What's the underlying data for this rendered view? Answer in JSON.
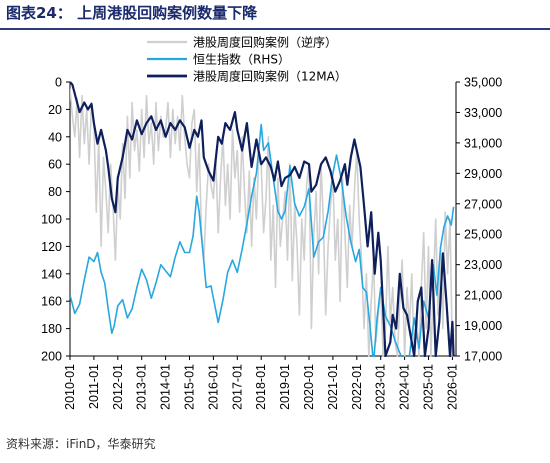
{
  "title": "图表24：  上周港股回购案例数量下降",
  "source": "资料来源：iFinD，华泰研究",
  "colors": {
    "weekly": "#cfcfcf",
    "hsi": "#27a7e0",
    "ma12": "#0e1f5c",
    "title": "#1a2a6c"
  },
  "chart_data": {
    "type": "line",
    "x_ticks": [
      "2010-01",
      "2011-01",
      "2012-01",
      "2013-01",
      "2014-01",
      "2015-01",
      "2016-01",
      "2017-01",
      "2018-01",
      "2019-01",
      "2020-01",
      "2021-01",
      "2022-01",
      "2023-01",
      "2024-01",
      "2025-01",
      "2026-01"
    ],
    "y_left": {
      "ticks": [
        0,
        20,
        40,
        60,
        80,
        100,
        120,
        140,
        160,
        180,
        200
      ],
      "ylim": [
        0,
        200
      ],
      "reversed": true,
      "label": ""
    },
    "y_right": {
      "ticks": [
        "35,000",
        "33,000",
        "31,000",
        "29,000",
        "27,000",
        "25,000",
        "23,000",
        "21,000",
        "19,000",
        "17,000"
      ],
      "ylim": [
        17000,
        35000
      ]
    },
    "legend": [
      {
        "name": "港股周度回购案例（逆序）",
        "key": "weekly"
      },
      {
        "name": "恒生指数（RHS）",
        "key": "hsi"
      },
      {
        "name": "港股周度回购案例（12MA）",
        "key": "ma12"
      }
    ],
    "series": [
      {
        "name": "港股周度回购案例（12MA）",
        "axis": "left",
        "x": [
          2010.0,
          2010.1,
          2010.25,
          2010.4,
          2010.6,
          2010.75,
          2010.9,
          2011.0,
          2011.15,
          2011.3,
          2011.5,
          2011.6,
          2011.75,
          2011.9,
          2012.0,
          2012.2,
          2012.4,
          2012.6,
          2012.8,
          2013.0,
          2013.2,
          2013.4,
          2013.6,
          2013.8,
          2014.0,
          2014.2,
          2014.4,
          2014.6,
          2014.8,
          2015.0,
          2015.2,
          2015.35,
          2015.5,
          2015.6,
          2015.8,
          2016.0,
          2016.2,
          2016.35,
          2016.5,
          2016.7,
          2016.9,
          2017.0,
          2017.2,
          2017.4,
          2017.6,
          2017.8,
          2018.0,
          2018.2,
          2018.4,
          2018.55,
          2018.7,
          2018.85,
          2019.0,
          2019.2,
          2019.4,
          2019.6,
          2019.8,
          2020.0,
          2020.1,
          2020.3,
          2020.5,
          2020.7,
          2020.9,
          2021.1,
          2021.3,
          2021.5,
          2021.6,
          2021.75,
          2021.9,
          2022.0,
          2022.15,
          2022.3,
          2022.45,
          2022.6,
          2022.75,
          2022.9,
          2023.0,
          2023.2,
          2023.4,
          2023.5,
          2023.65,
          2023.8,
          2023.95,
          2024.1,
          2024.25,
          2024.4,
          2024.55,
          2024.7,
          2024.85,
          2025.0,
          2025.15,
          2025.3,
          2025.45,
          2025.6,
          2025.75,
          2025.9,
          2026.0,
          2026.05
        ],
        "values": [
          0,
          2,
          12,
          22,
          15,
          20,
          16,
          30,
          45,
          35,
          50,
          62,
          85,
          95,
          70,
          55,
          35,
          42,
          28,
          38,
          30,
          25,
          35,
          28,
          40,
          30,
          35,
          28,
          33,
          48,
          35,
          40,
          28,
          55,
          65,
          72,
          40,
          45,
          30,
          35,
          22,
          35,
          50,
          30,
          62,
          42,
          60,
          55,
          62,
          72,
          58,
          76,
          70,
          68,
          62,
          70,
          58,
          60,
          80,
          75,
          60,
          55,
          65,
          80,
          72,
          60,
          75,
          55,
          42,
          50,
          62,
          90,
          120,
          95,
          140,
          110,
          130,
          200,
          190,
          170,
          180,
          140,
          165,
          170,
          185,
          200,
          160,
          150,
          200,
          180,
          130,
          200,
          175,
          125,
          160,
          200,
          175,
          200
        ]
      },
      {
        "name": "恒生指数（RHS）",
        "axis": "right",
        "x": [
          2010.0,
          2010.2,
          2010.4,
          2010.6,
          2010.8,
          2011.0,
          2011.15,
          2011.3,
          2011.45,
          2011.6,
          2011.75,
          2011.85,
          2012.0,
          2012.2,
          2012.4,
          2012.6,
          2012.8,
          2013.0,
          2013.2,
          2013.4,
          2013.6,
          2013.8,
          2014.0,
          2014.2,
          2014.4,
          2014.6,
          2014.8,
          2015.0,
          2015.15,
          2015.3,
          2015.4,
          2015.55,
          2015.7,
          2015.9,
          2016.1,
          2016.2,
          2016.4,
          2016.6,
          2016.8,
          2017.0,
          2017.2,
          2017.4,
          2017.6,
          2017.8,
          2018.0,
          2018.1,
          2018.3,
          2018.5,
          2018.7,
          2018.85,
          2019.0,
          2019.2,
          2019.4,
          2019.6,
          2019.8,
          2020.0,
          2020.2,
          2020.4,
          2020.6,
          2020.8,
          2021.0,
          2021.15,
          2021.35,
          2021.55,
          2021.75,
          2021.95,
          2022.1,
          2022.25,
          2022.4,
          2022.55,
          2022.7,
          2022.85,
          2023.0,
          2023.2,
          2023.4,
          2023.6,
          2023.8,
          2024.0,
          2024.2,
          2024.4,
          2024.6,
          2024.8,
          2025.0,
          2025.2,
          2025.35,
          2025.5,
          2025.65,
          2025.8,
          2025.95,
          2026.05
        ],
        "values": [
          21000,
          19800,
          20400,
          22000,
          23500,
          23200,
          23800,
          22500,
          21800,
          20100,
          18500,
          19000,
          20300,
          20700,
          19500,
          20100,
          21500,
          22700,
          22000,
          20800,
          21800,
          23000,
          22600,
          22200,
          23500,
          24500,
          23800,
          23800,
          24900,
          27500,
          26500,
          24000,
          21500,
          21600,
          20000,
          19200,
          20700,
          22500,
          23300,
          22500,
          24000,
          25700,
          27500,
          29000,
          32200,
          30500,
          31000,
          28700,
          26500,
          26000,
          26500,
          29500,
          27000,
          26200,
          26800,
          28000,
          23500,
          24500,
          24800,
          26500,
          29000,
          30200,
          28600,
          26200,
          24500,
          23200,
          24000,
          21500,
          21200,
          19000,
          16500,
          19500,
          21500,
          19600,
          19000,
          18000,
          17200,
          16500,
          17000,
          19500,
          17500,
          20600,
          19500,
          23000,
          21000,
          24100,
          25500,
          26200,
          25600,
          26800
        ]
      },
      {
        "name": "港股周度回购案例（逆序）",
        "axis": "left",
        "x": [
          2010.0,
          2010.1,
          2010.2,
          2010.3,
          2010.4,
          2010.5,
          2010.6,
          2010.7,
          2010.8,
          2010.9,
          2011.0,
          2011.1,
          2011.2,
          2011.3,
          2011.4,
          2011.5,
          2011.6,
          2011.7,
          2011.8,
          2011.9,
          2012.0,
          2012.1,
          2012.2,
          2012.3,
          2012.4,
          2012.5,
          2012.6,
          2012.7,
          2012.8,
          2012.9,
          2013.0,
          2013.1,
          2013.2,
          2013.3,
          2013.4,
          2013.5,
          2013.6,
          2013.7,
          2013.8,
          2013.9,
          2014.0,
          2014.1,
          2014.2,
          2014.3,
          2014.4,
          2014.5,
          2014.6,
          2014.7,
          2014.8,
          2014.9,
          2015.0,
          2015.1,
          2015.2,
          2015.3,
          2015.4,
          2015.5,
          2015.6,
          2015.7,
          2015.8,
          2015.9,
          2016.0,
          2016.1,
          2016.2,
          2016.3,
          2016.4,
          2016.5,
          2016.6,
          2016.7,
          2016.8,
          2016.9,
          2017.0,
          2017.1,
          2017.2,
          2017.3,
          2017.4,
          2017.5,
          2017.6,
          2017.7,
          2017.8,
          2017.9,
          2018.0,
          2018.1,
          2018.2,
          2018.3,
          2018.4,
          2018.5,
          2018.6,
          2018.7,
          2018.8,
          2018.9,
          2019.0,
          2019.1,
          2019.2,
          2019.3,
          2019.4,
          2019.5,
          2019.6,
          2019.7,
          2019.8,
          2019.9,
          2020.0,
          2020.1,
          2020.2,
          2020.3,
          2020.4,
          2020.5,
          2020.6,
          2020.7,
          2020.8,
          2020.9,
          2021.0,
          2021.1,
          2021.2,
          2021.3,
          2021.4,
          2021.5,
          2021.6,
          2021.7,
          2021.8,
          2021.9,
          2022.0,
          2022.1,
          2022.2,
          2022.3,
          2022.4,
          2022.5,
          2022.6,
          2022.7,
          2022.8,
          2022.9,
          2023.0,
          2023.1,
          2023.2,
          2023.3,
          2023.4,
          2023.5,
          2023.6,
          2023.7,
          2023.8,
          2023.9,
          2024.0,
          2024.1,
          2024.2,
          2024.3,
          2024.4,
          2024.5,
          2024.6,
          2024.7,
          2024.8,
          2024.9,
          2025.0,
          2025.1,
          2025.2,
          2025.3,
          2025.4,
          2025.5,
          2025.6,
          2025.7,
          2025.8,
          2025.9,
          2026.0,
          2026.05
        ],
        "values": [
          5,
          25,
          40,
          12,
          55,
          10,
          45,
          20,
          60,
          15,
          30,
          95,
          40,
          120,
          55,
          80,
          110,
          60,
          90,
          130,
          75,
          100,
          45,
          85,
          25,
          70,
          15,
          50,
          35,
          65,
          20,
          55,
          10,
          45,
          30,
          60,
          15,
          50,
          25,
          40,
          35,
          15,
          55,
          20,
          45,
          25,
          50,
          10,
          40,
          60,
          70,
          30,
          20,
          80,
          45,
          110,
          130,
          90,
          60,
          75,
          85,
          55,
          110,
          70,
          40,
          90,
          60,
          100,
          35,
          70,
          50,
          95,
          40,
          80,
          110,
          65,
          120,
          70,
          100,
          55,
          60,
          110,
          85,
          40,
          130,
          90,
          150,
          70,
          120,
          100,
          80,
          130,
          60,
          145,
          90,
          120,
          170,
          100,
          130,
          75,
          60,
          180,
          110,
          80,
          140,
          60,
          100,
          170,
          120,
          90,
          70,
          130,
          100,
          160,
          70,
          110,
          150,
          90,
          120,
          80,
          50,
          100,
          130,
          180,
          140,
          200,
          160,
          130,
          190,
          170,
          150,
          200,
          180,
          120,
          175,
          150,
          190,
          200,
          160,
          130,
          200,
          150,
          180,
          140,
          200,
          170,
          200,
          150,
          110,
          180,
          120,
          200,
          150,
          100,
          170,
          120,
          180,
          95,
          140,
          100,
          200,
          180
        ]
      }
    ]
  }
}
